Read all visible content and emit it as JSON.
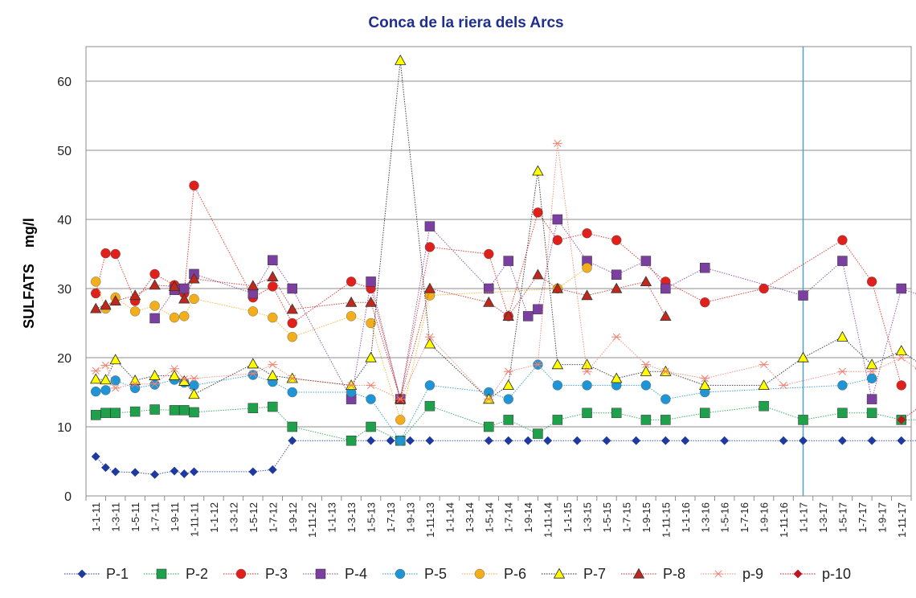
{
  "chart_data": {
    "type": "line",
    "title": "Conca de la riera dels Arcs",
    "ylabel": "SULFATS    mg/l",
    "xlabel": "",
    "ylim": [
      0,
      65
    ],
    "yticks": [
      0,
      10,
      20,
      30,
      40,
      50,
      60
    ],
    "grid": true,
    "legend": "bottom",
    "categories": [
      "1-1-11",
      "1-3-11",
      "1-5-11",
      "1-7-11",
      "1-9-11",
      "1-11-11",
      "1-1-12",
      "1-3-12",
      "1-5-12",
      "1-7-12",
      "1-9-12",
      "1-11-12",
      "1-1-13",
      "1-3-13",
      "1-5-13",
      "1-7-13",
      "1-9-13",
      "1-11-13",
      "1-1-14",
      "1-3-14",
      "1-5-14",
      "1-7-14",
      "1-9-14",
      "1-11-14",
      "1-1-15",
      "1-3-15",
      "1-5-15",
      "1-7-15",
      "1-9-15",
      "1-11-15",
      "1-1-16",
      "1-3-16",
      "1-5-16",
      "1-7-16",
      "1-9-16",
      "1-11-16",
      "1-1-17",
      "1-3-17",
      "1-5-17",
      "1-7-17",
      "1-9-17",
      "1-11-17"
    ],
    "reference_line": {
      "x": 36.0,
      "color": "#4fa3c7"
    },
    "series": [
      {
        "name": "P-1",
        "color": "#1f3a9e",
        "marker": "diamond",
        "points": [
          [
            0,
            5.7
          ],
          [
            0.5,
            4.1
          ],
          [
            1,
            3.5
          ],
          [
            2,
            3.4
          ],
          [
            3,
            3.1
          ],
          [
            4,
            3.6
          ],
          [
            4.5,
            3.2
          ],
          [
            5,
            3.5
          ],
          [
            8,
            3.5
          ],
          [
            9,
            3.8
          ],
          [
            10,
            8
          ],
          [
            13,
            8
          ],
          [
            14,
            8
          ],
          [
            15,
            8
          ],
          [
            16,
            8
          ],
          [
            17,
            8
          ],
          [
            20,
            8
          ],
          [
            21,
            8
          ],
          [
            22,
            8
          ],
          [
            23,
            8
          ],
          [
            24.5,
            8
          ],
          [
            26,
            8
          ],
          [
            27.5,
            8
          ],
          [
            29,
            8
          ],
          [
            30,
            8
          ],
          [
            32,
            8
          ],
          [
            35,
            8
          ],
          [
            36,
            8
          ],
          [
            38,
            8
          ],
          [
            39.5,
            8
          ],
          [
            41,
            8
          ],
          [
            42,
            8
          ]
        ]
      },
      {
        "name": "P-2",
        "color": "#1fa04a",
        "marker": "square",
        "points": [
          [
            0,
            11.7
          ],
          [
            0.5,
            12
          ],
          [
            1,
            12
          ],
          [
            2,
            12.2
          ],
          [
            3,
            12.5
          ],
          [
            4,
            12.4
          ],
          [
            4.5,
            12.4
          ],
          [
            5,
            12.1
          ],
          [
            8,
            12.7
          ],
          [
            9,
            12.9
          ],
          [
            10,
            10
          ],
          [
            13,
            8
          ],
          [
            14,
            10
          ],
          [
            15.5,
            8
          ],
          [
            17,
            13
          ],
          [
            20,
            10
          ],
          [
            21,
            11
          ],
          [
            22.5,
            9
          ],
          [
            23.5,
            11
          ],
          [
            25,
            12
          ],
          [
            26.5,
            12
          ],
          [
            28,
            11
          ],
          [
            29,
            11
          ],
          [
            31,
            12
          ],
          [
            34,
            13
          ],
          [
            36,
            11
          ],
          [
            38,
            12
          ],
          [
            39.5,
            12
          ],
          [
            41,
            11
          ],
          [
            42,
            11
          ]
        ]
      },
      {
        "name": "P-3",
        "color": "#e0201b",
        "marker": "circle",
        "points": [
          [
            0,
            29.3
          ],
          [
            0.5,
            35.1
          ],
          [
            1,
            35
          ],
          [
            2,
            28.2
          ],
          [
            3,
            32.1
          ],
          [
            4,
            30.5
          ],
          [
            4.5,
            29.3
          ],
          [
            5,
            44.9
          ],
          [
            8,
            28.7
          ],
          [
            9,
            30.3
          ],
          [
            10,
            25
          ],
          [
            13,
            31
          ],
          [
            14,
            30
          ],
          [
            15.5,
            14
          ],
          [
            17,
            36
          ],
          [
            20,
            35
          ],
          [
            21,
            26
          ],
          [
            22.5,
            41
          ],
          [
            23.5,
            37
          ],
          [
            25,
            38
          ],
          [
            26.5,
            37
          ],
          [
            29,
            31
          ],
          [
            31,
            28
          ],
          [
            34,
            30
          ],
          [
            38,
            37
          ],
          [
            39.5,
            31
          ],
          [
            41,
            16
          ]
        ]
      },
      {
        "name": "P-4",
        "color": "#7b3fa0",
        "marker": "square",
        "points": [
          [
            3,
            25.7
          ],
          [
            4,
            29.8
          ],
          [
            4.5,
            30
          ],
          [
            5,
            32.1
          ],
          [
            8,
            29.3
          ],
          [
            9,
            34.1
          ],
          [
            10,
            30
          ],
          [
            13,
            14
          ],
          [
            14,
            31
          ],
          [
            15.5,
            14
          ],
          [
            17,
            39
          ],
          [
            20,
            30
          ],
          [
            21,
            34
          ],
          [
            22,
            26
          ],
          [
            22.5,
            27
          ],
          [
            23.5,
            40
          ],
          [
            25,
            34
          ],
          [
            26.5,
            32
          ],
          [
            28,
            34
          ],
          [
            29,
            30
          ],
          [
            31,
            33
          ],
          [
            36,
            29
          ],
          [
            38,
            34
          ],
          [
            39.5,
            14
          ],
          [
            41,
            30
          ],
          [
            42,
            29
          ]
        ]
      },
      {
        "name": "P-5",
        "color": "#1f95d6",
        "marker": "circle",
        "points": [
          [
            0,
            15.1
          ],
          [
            0.5,
            15.3
          ],
          [
            1,
            16.7
          ],
          [
            2,
            15.6
          ],
          [
            3,
            16.1
          ],
          [
            4,
            16.8
          ],
          [
            4.5,
            16.4
          ],
          [
            5,
            16
          ],
          [
            8,
            17.5
          ],
          [
            9,
            16.5
          ],
          [
            10,
            15
          ],
          [
            13,
            15
          ],
          [
            14,
            14
          ],
          [
            15.5,
            8
          ],
          [
            17,
            16
          ],
          [
            20,
            15
          ],
          [
            21,
            14
          ],
          [
            22.5,
            19
          ],
          [
            23.5,
            16
          ],
          [
            25,
            16
          ],
          [
            26.5,
            16
          ],
          [
            28,
            16
          ],
          [
            29,
            14
          ],
          [
            31,
            15
          ],
          [
            38,
            16
          ],
          [
            39.5,
            17
          ]
        ]
      },
      {
        "name": "P-6",
        "color": "#f3ae1b",
        "marker": "circle",
        "points": [
          [
            0,
            31
          ],
          [
            0.5,
            27.1
          ],
          [
            1,
            28.7
          ],
          [
            2,
            26.7
          ],
          [
            3,
            27.5
          ],
          [
            4,
            25.8
          ],
          [
            4.5,
            26
          ],
          [
            5,
            28.5
          ],
          [
            8,
            26.7
          ],
          [
            9,
            25.8
          ],
          [
            10,
            23
          ],
          [
            13,
            26
          ],
          [
            14,
            25
          ],
          [
            15.5,
            11
          ],
          [
            17,
            29
          ],
          [
            23.5,
            30
          ],
          [
            25,
            33
          ]
        ]
      },
      {
        "name": "P-7",
        "color": "#222222",
        "fill": "#ffff00",
        "marker": "triangle",
        "points": [
          [
            0,
            16.9
          ],
          [
            0.5,
            16.8
          ],
          [
            1,
            19.7
          ],
          [
            2,
            16.7
          ],
          [
            3,
            17.4
          ],
          [
            4,
            17.4
          ],
          [
            4.5,
            16.6
          ],
          [
            5,
            14.7
          ],
          [
            8,
            19.1
          ],
          [
            9,
            17.4
          ],
          [
            10,
            17
          ],
          [
            13,
            16
          ],
          [
            14,
            20
          ],
          [
            15.5,
            63
          ],
          [
            17,
            22
          ],
          [
            20,
            14
          ],
          [
            21,
            16
          ],
          [
            22.5,
            47
          ],
          [
            23.5,
            19
          ],
          [
            25,
            19
          ],
          [
            26.5,
            17
          ],
          [
            28,
            18
          ],
          [
            29,
            18
          ],
          [
            31,
            16
          ],
          [
            34,
            16
          ],
          [
            36,
            20
          ],
          [
            38,
            23
          ],
          [
            39.5,
            19
          ],
          [
            41,
            21
          ],
          [
            42,
            19
          ]
        ]
      },
      {
        "name": "P-8",
        "color": "#c0281e",
        "marker": "triangle",
        "points": [
          [
            0,
            27.1
          ],
          [
            0.5,
            27.6
          ],
          [
            1,
            28.2
          ],
          [
            2,
            29
          ],
          [
            3,
            30.5
          ],
          [
            4,
            30.3
          ],
          [
            4.5,
            28.5
          ],
          [
            5,
            31.4
          ],
          [
            8,
            30.4
          ],
          [
            9,
            31.7
          ],
          [
            10,
            27
          ],
          [
            13,
            28
          ],
          [
            14,
            28
          ],
          [
            15.5,
            14
          ],
          [
            17,
            30
          ],
          [
            20,
            28
          ],
          [
            21,
            26
          ],
          [
            22.5,
            32
          ],
          [
            23.5,
            30
          ],
          [
            25,
            29
          ],
          [
            26.5,
            30
          ],
          [
            28,
            31
          ],
          [
            29,
            26
          ]
        ]
      },
      {
        "name": "p-9",
        "color": "#f08070",
        "marker": "star",
        "points": [
          [
            0,
            18.1
          ],
          [
            0.5,
            18.9
          ],
          [
            1,
            15.6
          ],
          [
            2,
            16.2
          ],
          [
            3,
            16.2
          ],
          [
            4,
            18.4
          ],
          [
            4.5,
            16.9
          ],
          [
            5,
            17
          ],
          [
            8,
            17.7
          ],
          [
            9,
            19
          ],
          [
            10,
            17
          ],
          [
            13,
            16
          ],
          [
            14,
            16
          ],
          [
            15.5,
            14
          ],
          [
            17,
            23
          ],
          [
            20,
            14
          ],
          [
            21,
            18
          ],
          [
            22.5,
            19
          ],
          [
            23.5,
            51
          ],
          [
            25,
            18
          ],
          [
            26.5,
            23
          ],
          [
            28,
            19
          ],
          [
            29,
            18
          ],
          [
            31,
            17
          ],
          [
            34,
            19
          ],
          [
            35,
            16
          ],
          [
            38,
            18
          ],
          [
            39.5,
            18
          ],
          [
            41,
            20
          ],
          [
            42,
            18
          ]
        ]
      },
      {
        "name": "p-10",
        "color": "#c0141e",
        "marker": "diamond",
        "points": [
          [
            41,
            11
          ],
          [
            42,
            13
          ]
        ]
      }
    ]
  }
}
